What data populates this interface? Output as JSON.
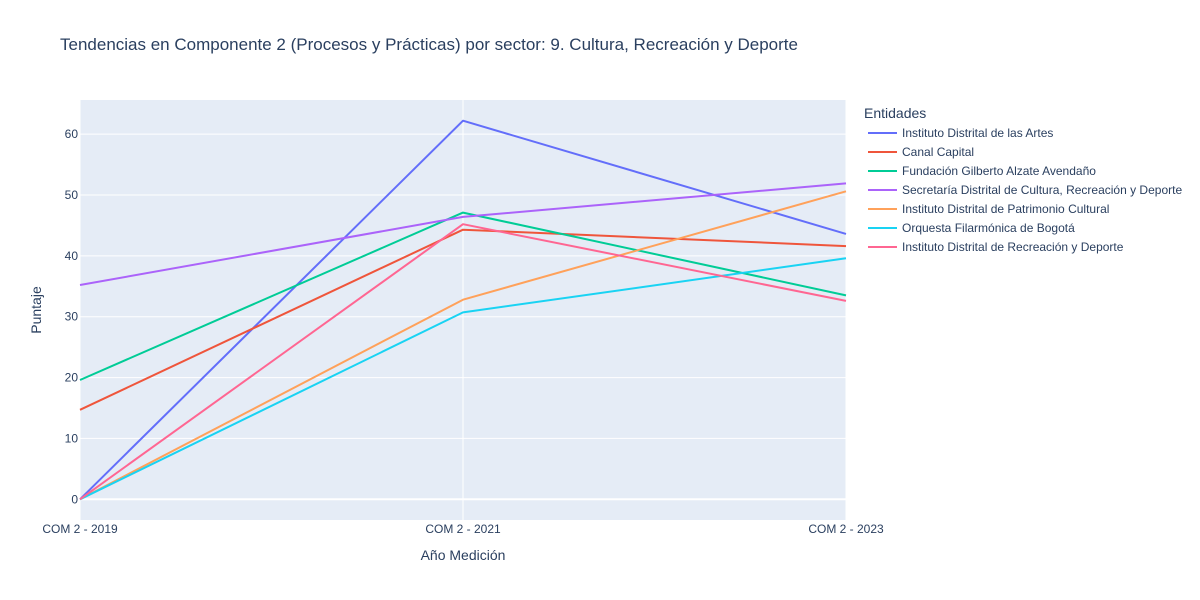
{
  "chart_data": {
    "type": "line",
    "title": "Tendencias en Componente 2 (Procesos y Prácticas) por sector: 9. Cultura, Recreación y Deporte",
    "xlabel": "Año Medición",
    "ylabel": "Puntaje",
    "x": [
      "COM 2 - 2019",
      "COM 2 - 2021",
      "COM 2 - 2023"
    ],
    "ylim": [
      -3.4,
      65.6
    ],
    "yticks": [
      0,
      10,
      20,
      30,
      40,
      50,
      60
    ],
    "grid": true,
    "legend_title": "Entidades",
    "legend_position": "right",
    "series": [
      {
        "name": "Instituto Distrital de las Artes",
        "color": "#636efa",
        "values": [
          0,
          62.2,
          43.6
        ]
      },
      {
        "name": "Canal Capital",
        "color": "#EF553B",
        "values": [
          14.7,
          44.3,
          41.6
        ]
      },
      {
        "name": "Fundación Gilberto Alzate Avendaño",
        "color": "#00cc96",
        "values": [
          19.6,
          47.1,
          33.5
        ]
      },
      {
        "name": "Secretaría Distrital de Cultura, Recreación y Deporte",
        "color": "#ab63fa",
        "values": [
          35.2,
          46.4,
          51.9
        ]
      },
      {
        "name": "Instituto Distrital de Patrimonio Cultural",
        "color": "#FFA15A",
        "values": [
          0,
          32.8,
          50.6
        ]
      },
      {
        "name": "Orquesta Filarmónica de Bogotá",
        "color": "#19d3f3",
        "values": [
          0,
          30.7,
          39.6
        ]
      },
      {
        "name": "Instituto Distrital de Recreación y Deporte",
        "color": "#FF6692",
        "values": [
          0,
          45.2,
          32.6
        ]
      }
    ]
  }
}
